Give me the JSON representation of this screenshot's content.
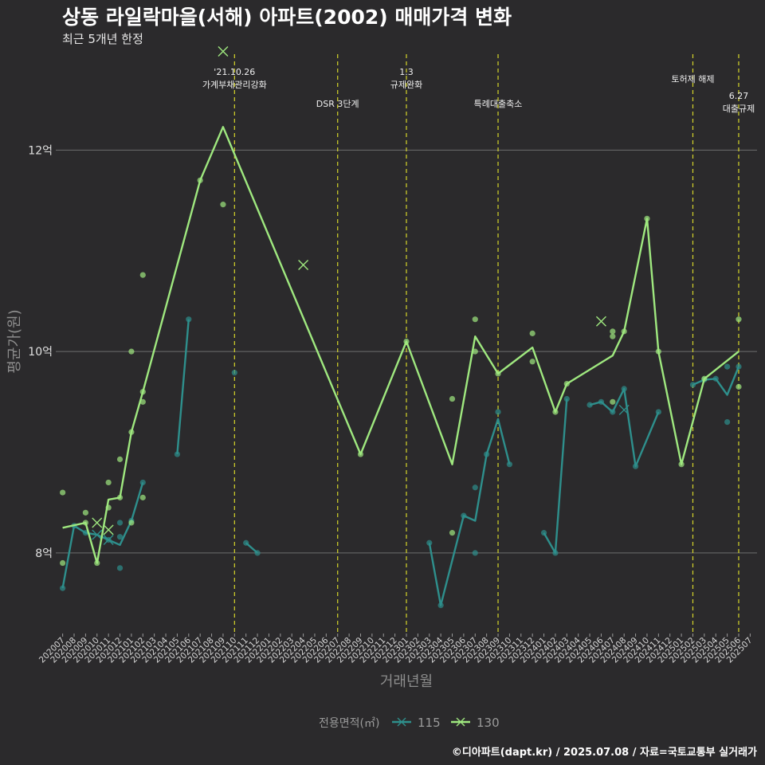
{
  "title": "상동 라일락마을(서해) 아파트(2002) 매매가격 변화",
  "subtitle": "최근 5개년 한정",
  "caption": "©디아파트(dapt.kr) / 2025.07.08 / 자료=국토교통부 실거래가",
  "chart_data": {
    "type": "line",
    "xlabel": "거래년월",
    "ylabel": "평균가(원)",
    "ylim": [
      7.2,
      13.0
    ],
    "yticks": [
      {
        "v": 8,
        "label": "8억"
      },
      {
        "v": 10,
        "label": "10억"
      },
      {
        "v": 12,
        "label": "12억"
      }
    ],
    "categories": [
      "202007",
      "202008",
      "202009",
      "202010",
      "202011",
      "202012",
      "202101",
      "202102",
      "202103",
      "202104",
      "202105",
      "202106",
      "202107",
      "202108",
      "202109",
      "202110",
      "202111",
      "202112",
      "202201",
      "202202",
      "202203",
      "202204",
      "202205",
      "202206",
      "202207",
      "202208",
      "202209",
      "202210",
      "202211",
      "202212",
      "202301",
      "202302",
      "202303",
      "202304",
      "202305",
      "202306",
      "202307",
      "202308",
      "202309",
      "202310",
      "202311",
      "202312",
      "202401",
      "202402",
      "202403",
      "202404",
      "202405",
      "202406",
      "202407",
      "202408",
      "202409",
      "202410",
      "202411",
      "202412",
      "202501",
      "202502",
      "202503",
      "202504",
      "202505",
      "202506",
      "202507"
    ],
    "legend_title": "전용면적(㎡)",
    "legend_position": "bottom",
    "grid": true,
    "series": [
      {
        "name": "115",
        "color": "#2e8f8c",
        "line": [
          [
            "202007",
            7.65
          ],
          [
            "202008",
            8.27
          ],
          [
            "202009",
            8.2
          ],
          [
            "202010",
            8.18
          ],
          [
            "202011",
            8.13
          ],
          [
            "202012",
            8.08
          ],
          [
            "202101",
            8.32
          ],
          [
            "202102",
            8.7
          ]
        ],
        "line2": [
          [
            "202105",
            8.98
          ],
          [
            "202106",
            10.32
          ]
        ],
        "line3": [
          [
            "202111",
            8.1
          ],
          [
            "202112",
            8.0
          ]
        ],
        "line4": [
          [
            "202303",
            8.1
          ],
          [
            "202304",
            7.48
          ],
          [
            "202306",
            8.37
          ],
          [
            "202307",
            8.32
          ],
          [
            "202308",
            8.98
          ],
          [
            "202309",
            9.33
          ],
          [
            "202310",
            8.88
          ]
        ],
        "line5": [
          [
            "202401",
            8.2
          ],
          [
            "202402",
            8.0
          ],
          [
            "202403",
            9.53
          ]
        ],
        "line6": [
          [
            "202405",
            9.47
          ],
          [
            "202406",
            9.5
          ],
          [
            "202407",
            9.4
          ],
          [
            "202408",
            9.63
          ],
          [
            "202409",
            8.86
          ],
          [
            "202411",
            9.4
          ]
        ],
        "line7": [
          [
            "202502",
            9.67
          ],
          [
            "202503",
            9.72
          ],
          [
            "202504",
            9.73
          ],
          [
            "202505",
            9.57
          ],
          [
            "202506",
            9.85
          ]
        ],
        "points": [
          [
            "202007",
            7.65
          ],
          [
            "202008",
            8.27
          ],
          [
            "202009",
            8.2
          ],
          [
            "202011",
            8.13
          ],
          [
            "202012",
            8.3
          ],
          [
            "202012",
            7.85
          ],
          [
            "202012",
            8.16
          ],
          [
            "202101",
            8.32
          ],
          [
            "202102",
            8.7
          ],
          [
            "202105",
            8.98
          ],
          [
            "202106",
            10.32
          ],
          [
            "202110",
            9.79
          ],
          [
            "202111",
            8.1
          ],
          [
            "202112",
            8.0
          ],
          [
            "202303",
            8.1
          ],
          [
            "202304",
            7.48
          ],
          [
            "202306",
            8.37
          ],
          [
            "202307",
            8.0
          ],
          [
            "202307",
            8.65
          ],
          [
            "202308",
            8.98
          ],
          [
            "202309",
            9.4
          ],
          [
            "202310",
            8.88
          ],
          [
            "202401",
            8.2
          ],
          [
            "202402",
            8.0
          ],
          [
            "202403",
            9.53
          ],
          [
            "202405",
            9.47
          ],
          [
            "202406",
            9.5
          ],
          [
            "202407",
            9.4
          ],
          [
            "202408",
            9.63
          ],
          [
            "202409",
            8.86
          ],
          [
            "202411",
            9.4
          ],
          [
            "202502",
            9.67
          ],
          [
            "202503",
            9.72
          ],
          [
            "202504",
            9.73
          ],
          [
            "202505",
            9.3
          ],
          [
            "202505",
            9.85
          ],
          [
            "202506",
            9.85
          ]
        ],
        "crosses": [
          [
            "202010",
            8.18
          ],
          [
            "202011",
            8.13
          ],
          [
            "202408",
            9.42
          ]
        ]
      },
      {
        "name": "130",
        "color": "#9fe87f",
        "line": [
          [
            "202007",
            8.25
          ],
          [
            "202009",
            8.3
          ],
          [
            "202010",
            7.9
          ],
          [
            "202011",
            8.53
          ],
          [
            "202012",
            8.55
          ],
          [
            "202101",
            9.2
          ],
          [
            "202102",
            9.6
          ],
          [
            "202107",
            11.7
          ],
          [
            "202109",
            12.23
          ],
          [
            "202209",
            8.98
          ],
          [
            "202301",
            10.1
          ],
          [
            "202305",
            8.88
          ],
          [
            "202307",
            10.15
          ],
          [
            "202309",
            9.78
          ],
          [
            "202312",
            10.04
          ],
          [
            "202402",
            9.4
          ],
          [
            "202403",
            9.68
          ],
          [
            "202407",
            9.96
          ],
          [
            "202408",
            10.2
          ],
          [
            "202410",
            11.32
          ],
          [
            "202411",
            10.0
          ],
          [
            "202501",
            8.88
          ],
          [
            "202503",
            9.73
          ],
          [
            "202506",
            10.0
          ]
        ],
        "points": [
          [
            "202007",
            8.6
          ],
          [
            "202007",
            7.9
          ],
          [
            "202009",
            8.4
          ],
          [
            "202009",
            8.3
          ],
          [
            "202010",
            7.9
          ],
          [
            "202011",
            8.45
          ],
          [
            "202011",
            8.7
          ],
          [
            "202012",
            8.55
          ],
          [
            "202012",
            8.93
          ],
          [
            "202101",
            9.2
          ],
          [
            "202101",
            8.3
          ],
          [
            "202101",
            10.0
          ],
          [
            "202102",
            9.6
          ],
          [
            "202102",
            9.5
          ],
          [
            "202102",
            10.76
          ],
          [
            "202102",
            8.55
          ],
          [
            "202107",
            11.7
          ],
          [
            "202109",
            11.46
          ],
          [
            "202209",
            8.98
          ],
          [
            "202301",
            10.1
          ],
          [
            "202305",
            9.53
          ],
          [
            "202305",
            8.2
          ],
          [
            "202307",
            10.0
          ],
          [
            "202307",
            10.32
          ],
          [
            "202309",
            9.78
          ],
          [
            "202312",
            10.18
          ],
          [
            "202312",
            9.9
          ],
          [
            "202402",
            9.4
          ],
          [
            "202403",
            9.68
          ],
          [
            "202407",
            9.5
          ],
          [
            "202407",
            10.2
          ],
          [
            "202407",
            10.15
          ],
          [
            "202408",
            10.2
          ],
          [
            "202410",
            11.32
          ],
          [
            "202411",
            10.0
          ],
          [
            "202501",
            8.88
          ],
          [
            "202503",
            9.73
          ],
          [
            "202506",
            10.32
          ],
          [
            "202506",
            9.65
          ]
        ],
        "crosses": [
          [
            "202010",
            8.3
          ],
          [
            "202011",
            8.23
          ],
          [
            "202109",
            12.98
          ],
          [
            "202204",
            10.86
          ],
          [
            "202406",
            10.3
          ]
        ]
      }
    ],
    "events": [
      {
        "x": "202110",
        "label": "'21.10.26\n가계부채관리강화",
        "level": 0
      },
      {
        "x": "202207",
        "label": "DSR 3단계",
        "level": 1
      },
      {
        "x": "202301",
        "label": "1.3\n규제완화",
        "level": 0
      },
      {
        "x": "202309",
        "label": "특례대출축소",
        "level": 1
      },
      {
        "x": "202502",
        "label": "토허제 해제",
        "level": 0
      },
      {
        "x": "202506",
        "label": "6.27\n대출규제",
        "level": 2
      }
    ]
  }
}
